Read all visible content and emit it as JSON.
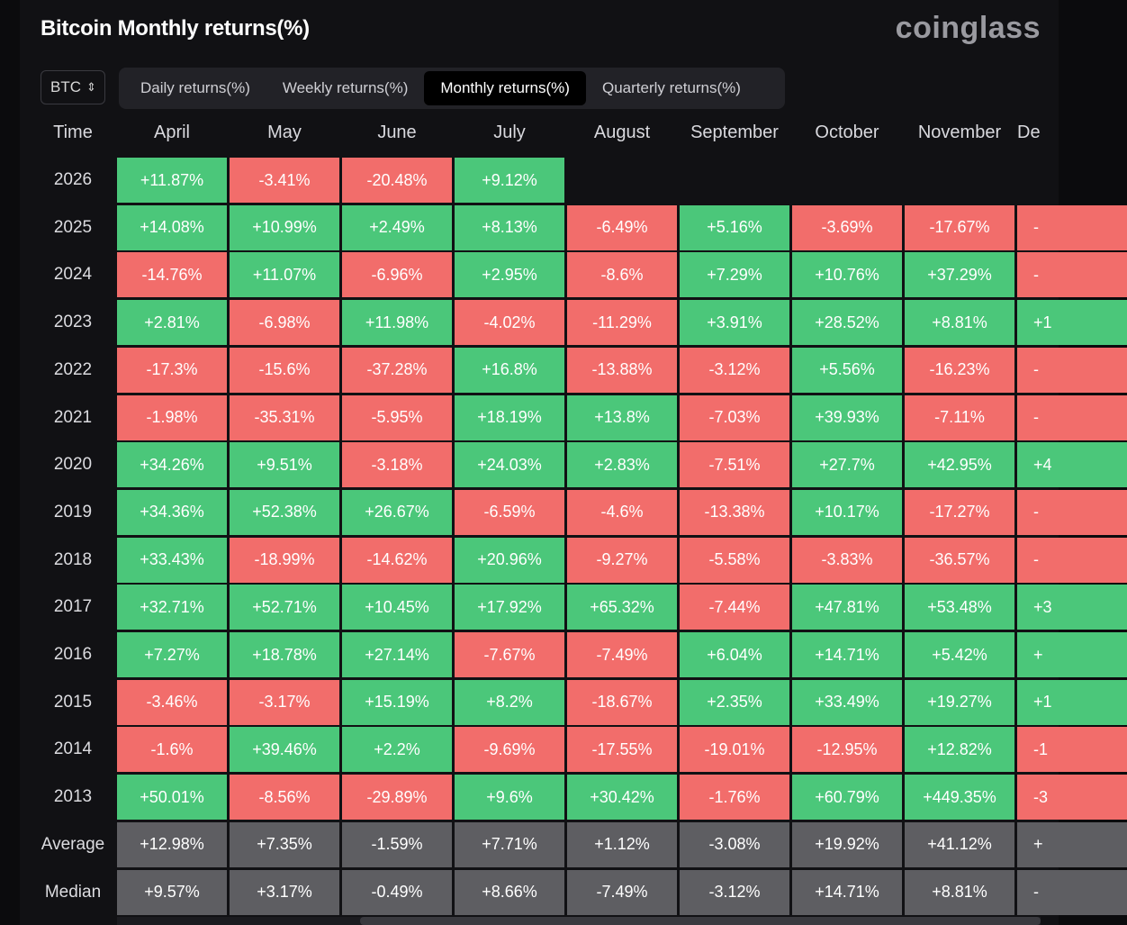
{
  "title": "Bitcoin Monthly returns(%)",
  "brand": "coinglass",
  "coin_select": {
    "value": "BTC",
    "icon": "chevron-updown-icon"
  },
  "tabs": [
    {
      "label": "Daily returns(%)",
      "active": false
    },
    {
      "label": "Weekly returns(%)",
      "active": false
    },
    {
      "label": "Monthly returns(%)",
      "active": true
    },
    {
      "label": "Quarterly returns(%)",
      "active": false
    }
  ],
  "colors": {
    "positive": "#4bc77a",
    "negative": "#f26d6b",
    "stat": "#5e5e62"
  },
  "table": {
    "time_header": "Time",
    "months": [
      "April",
      "May",
      "June",
      "July",
      "August",
      "September",
      "October",
      "November",
      "De"
    ],
    "rows": [
      {
        "year": "2026",
        "values": [
          "+11.87%",
          "-3.41%",
          "-20.48%",
          "+9.12%",
          "",
          "",
          "",
          "",
          ""
        ]
      },
      {
        "year": "2025",
        "values": [
          "+14.08%",
          "+10.99%",
          "+2.49%",
          "+8.13%",
          "-6.49%",
          "+5.16%",
          "-3.69%",
          "-17.67%",
          "-"
        ]
      },
      {
        "year": "2024",
        "values": [
          "-14.76%",
          "+11.07%",
          "-6.96%",
          "+2.95%",
          "-8.6%",
          "+7.29%",
          "+10.76%",
          "+37.29%",
          "-"
        ]
      },
      {
        "year": "2023",
        "values": [
          "+2.81%",
          "-6.98%",
          "+11.98%",
          "-4.02%",
          "-11.29%",
          "+3.91%",
          "+28.52%",
          "+8.81%",
          "+1"
        ]
      },
      {
        "year": "2022",
        "values": [
          "-17.3%",
          "-15.6%",
          "-37.28%",
          "+16.8%",
          "-13.88%",
          "-3.12%",
          "+5.56%",
          "-16.23%",
          "-"
        ]
      },
      {
        "year": "2021",
        "values": [
          "-1.98%",
          "-35.31%",
          "-5.95%",
          "+18.19%",
          "+13.8%",
          "-7.03%",
          "+39.93%",
          "-7.11%",
          "-"
        ]
      },
      {
        "year": "2020",
        "values": [
          "+34.26%",
          "+9.51%",
          "-3.18%",
          "+24.03%",
          "+2.83%",
          "-7.51%",
          "+27.7%",
          "+42.95%",
          "+4"
        ]
      },
      {
        "year": "2019",
        "values": [
          "+34.36%",
          "+52.38%",
          "+26.67%",
          "-6.59%",
          "-4.6%",
          "-13.38%",
          "+10.17%",
          "-17.27%",
          "-"
        ]
      },
      {
        "year": "2018",
        "values": [
          "+33.43%",
          "-18.99%",
          "-14.62%",
          "+20.96%",
          "-9.27%",
          "-5.58%",
          "-3.83%",
          "-36.57%",
          "-"
        ]
      },
      {
        "year": "2017",
        "values": [
          "+32.71%",
          "+52.71%",
          "+10.45%",
          "+17.92%",
          "+65.32%",
          "-7.44%",
          "+47.81%",
          "+53.48%",
          "+3"
        ]
      },
      {
        "year": "2016",
        "values": [
          "+7.27%",
          "+18.78%",
          "+27.14%",
          "-7.67%",
          "-7.49%",
          "+6.04%",
          "+14.71%",
          "+5.42%",
          "+"
        ]
      },
      {
        "year": "2015",
        "values": [
          "-3.46%",
          "-3.17%",
          "+15.19%",
          "+8.2%",
          "-18.67%",
          "+2.35%",
          "+33.49%",
          "+19.27%",
          "+1"
        ]
      },
      {
        "year": "2014",
        "values": [
          "-1.6%",
          "+39.46%",
          "+2.2%",
          "-9.69%",
          "-17.55%",
          "-19.01%",
          "-12.95%",
          "+12.82%",
          "-1"
        ]
      },
      {
        "year": "2013",
        "values": [
          "+50.01%",
          "-8.56%",
          "-29.89%",
          "+9.6%",
          "+30.42%",
          "-1.76%",
          "+60.79%",
          "+449.35%",
          "-3"
        ]
      }
    ],
    "stats": [
      {
        "label": "Average",
        "values": [
          "+12.98%",
          "+7.35%",
          "-1.59%",
          "+7.71%",
          "+1.12%",
          "-3.08%",
          "+19.92%",
          "+41.12%",
          "+"
        ]
      },
      {
        "label": "Median",
        "values": [
          "+9.57%",
          "+3.17%",
          "-0.49%",
          "+8.66%",
          "-7.49%",
          "-3.12%",
          "+14.71%",
          "+8.81%",
          "-"
        ]
      }
    ]
  }
}
